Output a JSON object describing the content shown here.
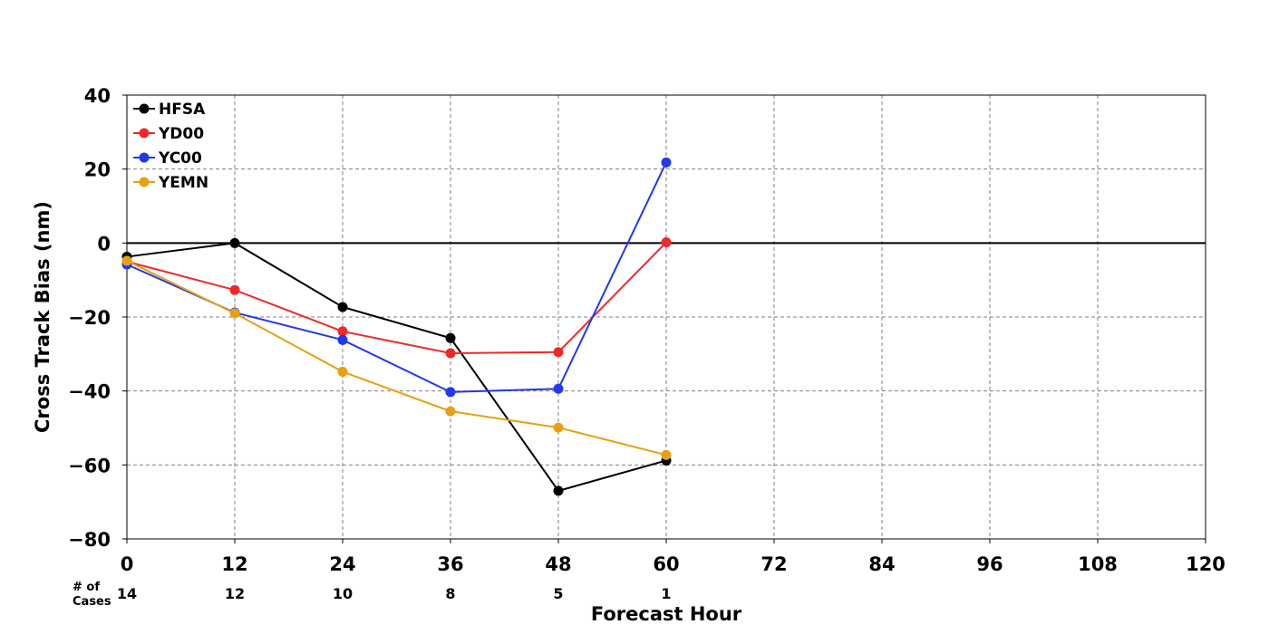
{
  "chart_data": {
    "type": "line",
    "title": "",
    "xlabel": "Forecast Hour",
    "ylabel": "Cross Track Bias (nm)",
    "xlim": [
      0,
      120
    ],
    "ylim": [
      -80,
      40
    ],
    "xticks": [
      0,
      12,
      24,
      36,
      48,
      60,
      72,
      84,
      96,
      108,
      120
    ],
    "yticks": [
      40,
      20,
      0,
      -20,
      -40,
      -60,
      -80
    ],
    "ytick_labels": [
      "40",
      "20",
      "0",
      "−20",
      "−40",
      "−60",
      "−80"
    ],
    "grid": true,
    "zero_line": true,
    "legend_position": "top-left",
    "cases_title": [
      "# of",
      "Cases"
    ],
    "cases": [
      {
        "hour": 0,
        "count": "14"
      },
      {
        "hour": 12,
        "count": "12"
      },
      {
        "hour": 24,
        "count": "10"
      },
      {
        "hour": 36,
        "count": "8"
      },
      {
        "hour": 48,
        "count": "5"
      },
      {
        "hour": 60,
        "count": "1"
      }
    ],
    "x": [
      0,
      12,
      24,
      36,
      48,
      60
    ],
    "series": [
      {
        "name": "HFSA",
        "color": "#000000",
        "values": [
          -3.7,
          0,
          -17.3,
          -25.7,
          -67.0,
          -58.8
        ]
      },
      {
        "name": "YD00",
        "color": "#f02828",
        "values": [
          -5.0,
          -12.7,
          -23.9,
          -29.8,
          -29.5,
          0.2
        ]
      },
      {
        "name": "YC00",
        "color": "#2038f0",
        "values": [
          -5.8,
          -18.8,
          -26.2,
          -40.3,
          -39.4,
          21.8
        ]
      },
      {
        "name": "YEMN",
        "color": "#e8a010",
        "values": [
          -4.8,
          -19.0,
          -34.8,
          -45.5,
          -49.9,
          -57.3
        ]
      }
    ]
  }
}
